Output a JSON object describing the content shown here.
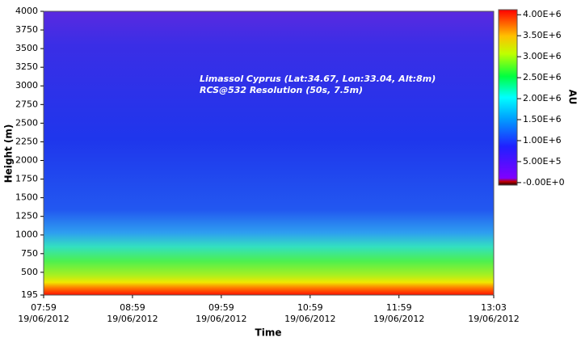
{
  "chart_data": {
    "type": "heatmap",
    "annotations": [
      "Limassol Cyprus (Lat:34.67, Lon:33.04, Alt:8m)",
      "RCS@532 Resolution (50s, 7.5m)"
    ],
    "xlabel": "Time",
    "ylabel": "Height (m)",
    "colorbar_label": "AU",
    "xlim": [
      "2012-06-19T07:59",
      "2012-06-19T13:03"
    ],
    "xticks": [
      {
        "value": "2012-06-19T07:59",
        "label": "07:59",
        "date": "19/06/2012"
      },
      {
        "value": "2012-06-19T08:59",
        "label": "08:59",
        "date": "19/06/2012"
      },
      {
        "value": "2012-06-19T09:59",
        "label": "09:59",
        "date": "19/06/2012"
      },
      {
        "value": "2012-06-19T10:59",
        "label": "10:59",
        "date": "19/06/2012"
      },
      {
        "value": "2012-06-19T11:59",
        "label": "11:59",
        "date": "19/06/2012"
      },
      {
        "value": "2012-06-19T13:03",
        "label": "13:03",
        "date": "19/06/2012"
      }
    ],
    "ylim": [
      195,
      4000
    ],
    "yticks": [
      195,
      500,
      750,
      1000,
      1250,
      1500,
      1750,
      2000,
      2250,
      2500,
      2750,
      3000,
      3250,
      3500,
      3750,
      4000
    ],
    "clim": [
      -60000,
      4120000
    ],
    "cticks": [
      {
        "value": 4000000,
        "label": "4.00E+6"
      },
      {
        "value": 3500000,
        "label": "3.50E+6"
      },
      {
        "value": 3000000,
        "label": "3.00E+6"
      },
      {
        "value": 2500000,
        "label": "2.50E+6"
      },
      {
        "value": 2000000,
        "label": "2.00E+6"
      },
      {
        "value": 1500000,
        "label": "1.50E+6"
      },
      {
        "value": 1000000,
        "label": "1.00E+6"
      },
      {
        "value": 500000,
        "label": "5.00E+5"
      },
      {
        "value": 0,
        "label": "-0.00E+0"
      }
    ]
  }
}
